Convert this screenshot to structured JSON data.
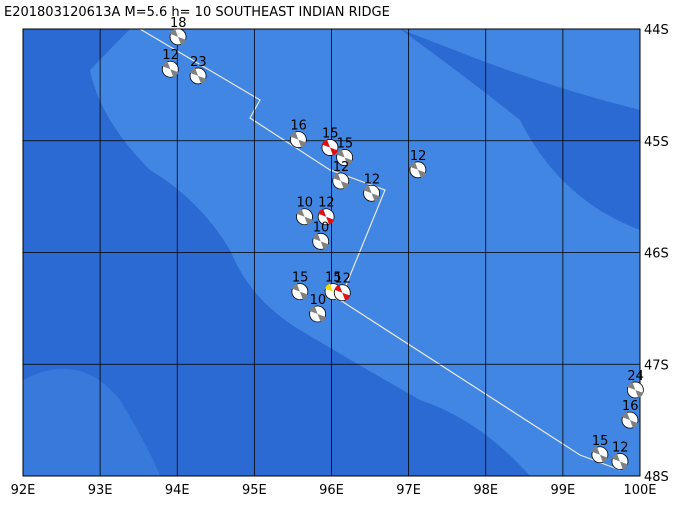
{
  "chart_data": {
    "type": "map",
    "title": "E201803120613A  M=5.6  h= 10  SOUTHEAST INDIAN RIDGE",
    "xlim": [
      92,
      100
    ],
    "ylim": [
      44,
      48
    ],
    "xticks": [
      {
        "value": 92,
        "label": "92E"
      },
      {
        "value": 93,
        "label": "93E"
      },
      {
        "value": 94,
        "label": "94E"
      },
      {
        "value": 95,
        "label": "95E"
      },
      {
        "value": 96,
        "label": "96E"
      },
      {
        "value": 97,
        "label": "97E"
      },
      {
        "value": 98,
        "label": "98E"
      },
      {
        "value": 99,
        "label": "99E"
      },
      {
        "value": 100,
        "label": "100E"
      }
    ],
    "yticks": [
      {
        "value": 44,
        "label": "44S"
      },
      {
        "value": 45,
        "label": "45S"
      },
      {
        "value": 46,
        "label": "46S"
      },
      {
        "value": 47,
        "label": "47S"
      },
      {
        "value": 48,
        "label": "48S"
      }
    ],
    "grid": true,
    "events": [
      {
        "lon": 94.01,
        "lat": 44.07,
        "label": "18",
        "color": "#808080"
      },
      {
        "lon": 93.91,
        "lat": 44.36,
        "label": "12",
        "color": "#808080"
      },
      {
        "lon": 94.27,
        "lat": 44.42,
        "label": "23",
        "color": "#808080"
      },
      {
        "lon": 95.57,
        "lat": 44.99,
        "label": "16",
        "color": "#808080"
      },
      {
        "lon": 95.98,
        "lat": 45.06,
        "label": "15",
        "color": "#e01010"
      },
      {
        "lon": 96.17,
        "lat": 45.15,
        "label": "15",
        "color": "#808080"
      },
      {
        "lon": 96.12,
        "lat": 45.36,
        "label": "12",
        "color": "#808080"
      },
      {
        "lon": 96.52,
        "lat": 45.47,
        "label": "12",
        "color": "#808080"
      },
      {
        "lon": 97.12,
        "lat": 45.26,
        "label": "12",
        "color": "#808080"
      },
      {
        "lon": 95.65,
        "lat": 45.68,
        "label": "10",
        "color": "#808080"
      },
      {
        "lon": 95.93,
        "lat": 45.68,
        "label": "12",
        "color": "#e01010"
      },
      {
        "lon": 95.86,
        "lat": 45.9,
        "label": "10",
        "color": "#808080"
      },
      {
        "lon": 95.59,
        "lat": 46.35,
        "label": "15",
        "color": "#808080"
      },
      {
        "lon": 96.02,
        "lat": 46.35,
        "label": "15",
        "color": "#f0e000"
      },
      {
        "lon": 96.14,
        "lat": 46.36,
        "label": "12",
        "color": "#e01010"
      },
      {
        "lon": 95.82,
        "lat": 46.55,
        "label": "10",
        "color": "#808080"
      },
      {
        "lon": 99.48,
        "lat": 47.81,
        "label": "15",
        "color": "#808080"
      },
      {
        "lon": 99.87,
        "lat": 47.5,
        "label": "16",
        "color": "#808080"
      },
      {
        "lon": 99.94,
        "lat": 47.23,
        "label": "24",
        "color": "#808080"
      },
      {
        "lon": 99.74,
        "lat": 47.87,
        "label": "12",
        "color": "#808080"
      }
    ]
  }
}
